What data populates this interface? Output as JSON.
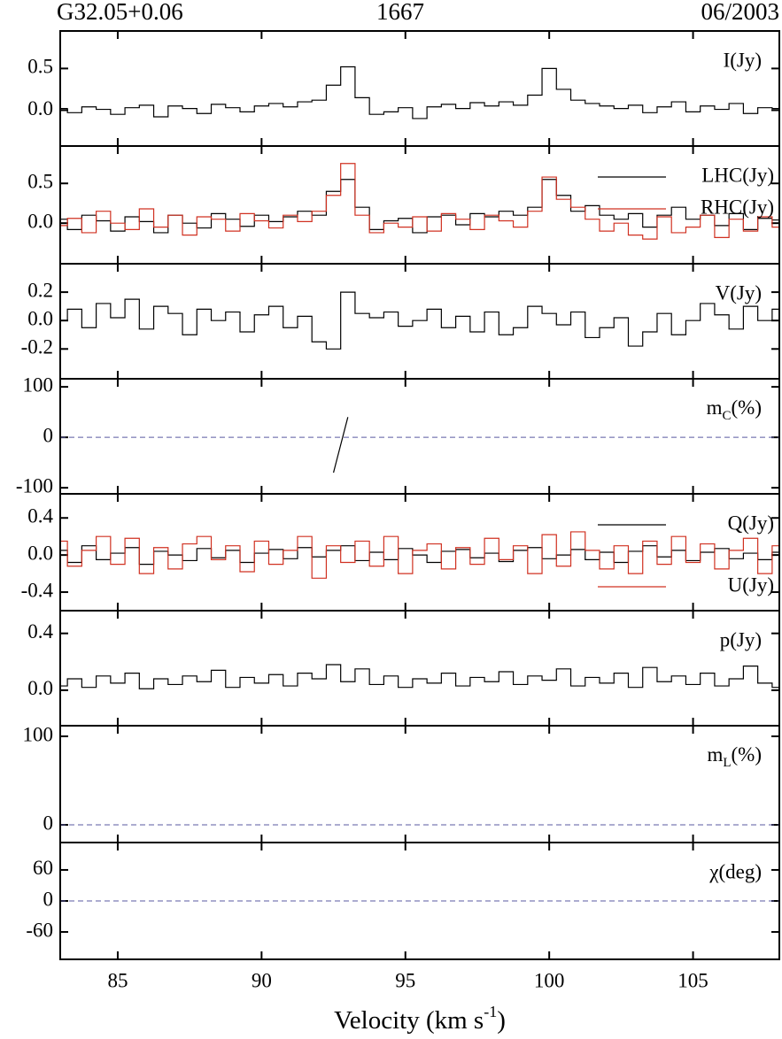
{
  "chart_data": {
    "type": "multi-panel",
    "header": {
      "source": "G32.05+0.06",
      "transition": "1667",
      "epoch": "06/2003"
    },
    "xlabel": {
      "text": "Velocity (km s",
      "sup": "-1",
      "tail": ")"
    },
    "xlim": [
      83,
      108
    ],
    "xticks": [
      85,
      90,
      95,
      100,
      105
    ],
    "x": [
      83,
      83.5,
      84,
      84.5,
      85,
      85.5,
      86,
      86.5,
      87,
      87.5,
      88,
      88.5,
      89,
      89.5,
      90,
      90.5,
      91,
      91.5,
      92,
      92.5,
      93,
      93.5,
      94,
      94.5,
      95,
      95.5,
      96,
      96.5,
      97,
      97.5,
      98,
      98.5,
      99,
      99.5,
      100,
      100.5,
      101,
      101.5,
      102,
      102.5,
      103,
      103.5,
      104,
      104.5,
      105,
      105.5,
      106,
      106.5,
      107,
      107.5,
      108
    ],
    "panels": [
      {
        "type": "step",
        "label": "I(Jy)",
        "ylim": [
          -0.43,
          0.95
        ],
        "yticks": [
          {
            "value": 0,
            "label": "0.0"
          },
          0.5
        ],
        "series": [
          {
            "color": "#000000",
            "values": [
              0.02,
              -0.03,
              0.04,
              0.01,
              -0.05,
              0.03,
              0.06,
              -0.08,
              0.05,
              0.02,
              -0.04,
              0.07,
              0.03,
              -0.02,
              0.05,
              0.08,
              0.04,
              0.1,
              0.12,
              0.3,
              0.52,
              0.15,
              -0.05,
              -0.02,
              0.03,
              -0.1,
              0.04,
              0.07,
              0.02,
              0.09,
              0.05,
              0.1,
              0.06,
              0.18,
              0.5,
              0.25,
              0.12,
              0.08,
              0.05,
              0.02,
              0.06,
              -0.03,
              0.04,
              0.1,
              -0.02,
              0.05,
              0.01,
              0.08,
              -0.04,
              0.03,
              0.02
            ]
          }
        ]
      },
      {
        "type": "step",
        "legend": "upper right",
        "ylim": [
          -0.51,
          0.97
        ],
        "yticks": [
          {
            "value": 0,
            "label": "0.0"
          },
          0.5
        ],
        "series": [
          {
            "name": "LHC(Jy)",
            "color": "#000000",
            "values": [
              0.05,
              -0.08,
              0.1,
              0.03,
              -0.1,
              0.08,
              0.02,
              -0.12,
              0.1,
              0.0,
              -0.06,
              0.12,
              0.05,
              -0.04,
              0.1,
              0.02,
              0.08,
              0.15,
              0.1,
              0.4,
              0.55,
              0.2,
              -0.08,
              0.03,
              0.06,
              -0.12,
              0.08,
              0.1,
              -0.02,
              0.12,
              0.08,
              0.15,
              0.1,
              0.2,
              0.55,
              0.35,
              0.15,
              0.22,
              0.1,
              0.05,
              0.12,
              -0.05,
              0.1,
              0.2,
              0.05,
              0.1,
              -0.03,
              0.12,
              -0.08,
              0.06,
              0.04
            ]
          },
          {
            "name": "RHC(Jy)",
            "color": "#d03020",
            "values": [
              -0.03,
              0.06,
              -0.12,
              0.15,
              0.0,
              -0.08,
              0.18,
              -0.05,
              0.1,
              -0.15,
              0.08,
              0.05,
              -0.1,
              0.12,
              0.03,
              -0.06,
              0.1,
              0.02,
              0.15,
              0.35,
              0.75,
              0.1,
              -0.12,
              0.0,
              -0.05,
              0.08,
              -0.1,
              0.12,
              0.05,
              -0.08,
              0.1,
              0.03,
              -0.05,
              0.15,
              0.58,
              0.3,
              0.2,
              0.05,
              -0.1,
              0.0,
              -0.15,
              -0.2,
              0.08,
              -0.12,
              -0.05,
              0.1,
              -0.18,
              0.05,
              -0.1,
              0.08,
              -0.05
            ]
          }
        ]
      },
      {
        "type": "step",
        "label": "V(Jy)",
        "ylim": [
          -0.41,
          0.4
        ],
        "yticks": [
          -0.2,
          {
            "value": 0,
            "label": "0.0"
          },
          0.2
        ],
        "series": [
          {
            "color": "#000000",
            "values": [
              0.0,
              0.08,
              -0.05,
              0.12,
              0.02,
              0.15,
              -0.06,
              0.1,
              0.05,
              -0.1,
              0.08,
              0.0,
              0.06,
              -0.08,
              0.04,
              0.1,
              -0.05,
              0.03,
              -0.15,
              -0.2,
              0.2,
              0.05,
              0.02,
              0.06,
              -0.04,
              0.0,
              0.08,
              -0.05,
              0.03,
              -0.08,
              0.06,
              -0.1,
              -0.05,
              0.1,
              0.05,
              -0.03,
              0.06,
              -0.12,
              -0.05,
              0.02,
              -0.18,
              -0.08,
              0.05,
              -0.1,
              0.0,
              0.12,
              0.04,
              -0.06,
              0.1,
              0.0,
              0.08
            ]
          }
        ]
      },
      {
        "type": "line",
        "label": {
          "main": "m",
          "sub": "C",
          "unit": "(%)"
        },
        "ylim": [
          -112,
          116
        ],
        "yticks": [
          -100,
          0,
          100
        ],
        "hline": 0,
        "series": [
          {
            "color": "#000000",
            "values": [
              null,
              null,
              null,
              null,
              null,
              null,
              null,
              null,
              null,
              null,
              null,
              null,
              null,
              null,
              null,
              null,
              null,
              null,
              null,
              -70,
              40,
              null,
              null,
              null,
              null,
              null,
              null,
              null,
              null,
              null,
              null,
              null,
              null,
              null,
              null,
              null,
              null,
              null,
              null,
              null,
              null,
              null,
              null,
              null,
              null,
              null,
              null,
              null,
              null,
              null,
              null
            ]
          }
        ]
      },
      {
        "type": "step",
        "legend": "right",
        "ylim": [
          -0.6,
          0.66
        ],
        "yticks": [
          -0.4,
          {
            "value": 0,
            "label": "0.0"
          },
          0.4
        ],
        "series": [
          {
            "name": "Q(Jy)",
            "color": "#000000",
            "values": [
              0.05,
              -0.08,
              0.1,
              -0.05,
              0.02,
              0.08,
              -0.1,
              0.04,
              0.0,
              -0.06,
              0.07,
              -0.03,
              0.05,
              -0.08,
              0.02,
              0.06,
              -0.04,
              0.08,
              -0.02,
              0.05,
              0.1,
              -0.06,
              0.03,
              -0.05,
              0.07,
              0.0,
              -0.08,
              0.04,
              0.06,
              -0.03,
              0.02,
              -0.07,
              0.05,
              0.08,
              -0.04,
              0.0,
              0.06,
              -0.05,
              0.03,
              -0.08,
              0.04,
              0.1,
              -0.02,
              0.05,
              -0.06,
              0.03,
              0.07,
              -0.04,
              0.02,
              -0.05,
              0.03
            ]
          },
          {
            "name": "U(Jy)",
            "color": "#d03020",
            "values": [
              0.15,
              -0.12,
              0.05,
              0.2,
              -0.1,
              0.18,
              -0.2,
              0.08,
              -0.15,
              0.12,
              0.2,
              -0.05,
              0.1,
              -0.18,
              0.15,
              -0.1,
              0.05,
              0.2,
              -0.25,
              0.1,
              -0.08,
              0.15,
              -0.12,
              0.2,
              -0.2,
              0.05,
              0.12,
              -0.15,
              0.08,
              -0.1,
              0.18,
              -0.05,
              0.1,
              -0.2,
              0.22,
              -0.12,
              0.25,
              0.05,
              -0.15,
              0.1,
              -0.2,
              0.15,
              -0.1,
              0.2,
              -0.08,
              0.12,
              -0.15,
              0.05,
              0.18,
              -0.2,
              0.1
            ]
          }
        ]
      },
      {
        "type": "step",
        "label": "p(Jy)",
        "ylim": [
          -0.25,
          0.56
        ],
        "yticks": [
          {
            "value": 0,
            "label": "0.0"
          },
          0.4
        ],
        "series": [
          {
            "color": "#000000",
            "values": [
              0.03,
              0.08,
              0.02,
              0.1,
              0.05,
              0.12,
              0.01,
              0.08,
              0.04,
              0.1,
              0.06,
              0.14,
              0.02,
              0.09,
              0.05,
              0.11,
              0.03,
              0.12,
              0.08,
              0.18,
              0.06,
              0.15,
              0.04,
              0.1,
              0.02,
              0.08,
              0.05,
              0.12,
              0.03,
              0.09,
              0.06,
              0.13,
              0.04,
              0.1,
              0.07,
              0.15,
              0.03,
              0.09,
              0.05,
              0.12,
              0.02,
              0.16,
              0.06,
              0.1,
              0.04,
              0.12,
              0.03,
              0.08,
              0.17,
              0.05,
              0.02
            ]
          }
        ]
      },
      {
        "type": "line",
        "label": {
          "main": "m",
          "sub": "L",
          "unit": "(%)"
        },
        "ylim": [
          -20,
          112
        ],
        "yticks": [
          0,
          100
        ],
        "hline": 0,
        "series": []
      },
      {
        "type": "line",
        "label": "χ(deg)",
        "ylim": [
          -113,
          113
        ],
        "yticks": [
          -60,
          0,
          60
        ],
        "hline": 0,
        "series": []
      }
    ]
  }
}
